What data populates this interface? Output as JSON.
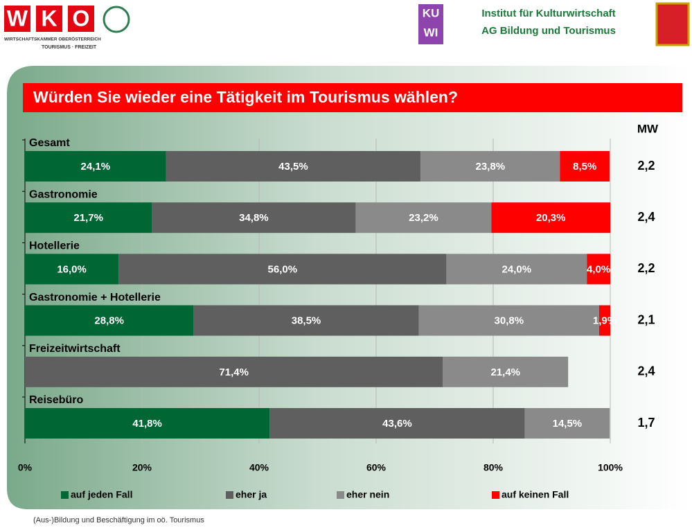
{
  "header": {
    "logo_letters": [
      "W",
      "K",
      "O"
    ],
    "logo_line1": "WIRTSCHAFTSKAMMER OBERÖSTERREICH",
    "logo_line2": "TOURISMUS · FREIZEIT",
    "kuwi_top": "KU",
    "kuwi_bottom": "WI",
    "institute": "Institut für Kulturwirtschaft",
    "group": "AG Bildung und Tourismus"
  },
  "footer": "(Aus-)Bildung und Beschäftigung im oö. Tourismus",
  "chart_data": {
    "type": "stacked_barh",
    "title": "Würden Sie wieder eine Tätigkeit im Tourismus wählen?",
    "categories": [
      "Gesamt",
      "Gastronomie",
      "Hotellerie",
      "Gastronomie + Hotellerie",
      "Freizeitwirtschaft",
      "Reisebüro"
    ],
    "series": [
      {
        "name": "auf jeden Fall",
        "color": "#006633",
        "values": [
          24.1,
          21.7,
          16.0,
          28.8,
          null,
          41.8
        ],
        "value_labels": [
          "24,1%",
          "21,7%",
          "16,0%",
          "28,8%",
          null,
          "41,8%"
        ]
      },
      {
        "name": "eher ja",
        "color": "#5f5f5f",
        "values": [
          43.5,
          34.8,
          56.0,
          38.5,
          71.4,
          43.6
        ],
        "value_labels": [
          "43,5%",
          "34,8%",
          "56,0%",
          "38,5%",
          "71,4%",
          "43,6%"
        ]
      },
      {
        "name": "eher nein",
        "color": "#8a8a8a",
        "values": [
          23.8,
          23.2,
          24.0,
          30.8,
          21.4,
          14.5
        ],
        "value_labels": [
          "23,8%",
          "23,2%",
          "24,0%",
          "30,8%",
          "21,4%",
          "14,5%"
        ]
      },
      {
        "name": "auf keinen Fall",
        "color": "#ff0000",
        "values": [
          8.5,
          20.3,
          4.0,
          1.9,
          null,
          null
        ],
        "value_labels": [
          "8,5%",
          "20,3%",
          "4,0%",
          "1,9%",
          null,
          null
        ]
      }
    ],
    "xlim": [
      0,
      100
    ],
    "xticks": [
      {
        "value": 0,
        "label": "0%"
      },
      {
        "value": 20,
        "label": "20%"
      },
      {
        "value": 40,
        "label": "40%"
      },
      {
        "value": 60,
        "label": "60%"
      },
      {
        "value": 80,
        "label": "80%"
      },
      {
        "value": 100,
        "label": "100%"
      }
    ],
    "grid": true,
    "legend": "bottom",
    "mw": {
      "label": "MW",
      "values": [
        2.2,
        2.4,
        2.2,
        2.1,
        2.4,
        1.7
      ],
      "value_labels": [
        "2,2",
        "2,4",
        "2,2",
        "2,1",
        "2,4",
        "1,7"
      ]
    }
  }
}
